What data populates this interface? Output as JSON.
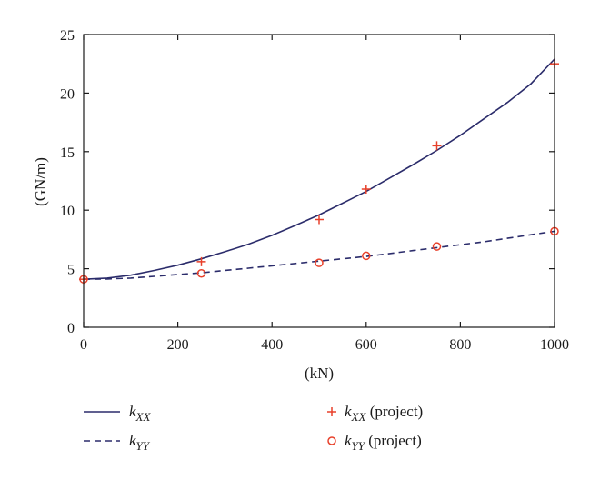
{
  "colors": {
    "line": "#2b2c6b",
    "marker": "#e8402a",
    "axis": "#1a1a1a"
  },
  "chart_data": {
    "type": "line",
    "title": "",
    "xlabel": "(kN)",
    "ylabel": "(GN/m)",
    "xlim": [
      0,
      1000
    ],
    "ylim": [
      0,
      25
    ],
    "xticks": [
      0,
      200,
      400,
      600,
      800,
      1000
    ],
    "yticks": [
      0,
      5,
      10,
      15,
      20,
      25
    ],
    "grid": false,
    "legend_position": "bottom",
    "series": [
      {
        "label_main": "k",
        "label_sub": "XX",
        "label_suffix": "",
        "style": "solid",
        "x": [
          0,
          50,
          100,
          150,
          200,
          250,
          300,
          350,
          400,
          450,
          500,
          550,
          600,
          650,
          700,
          750,
          800,
          850,
          900,
          950,
          1000
        ],
        "y": [
          4.1,
          4.2,
          4.45,
          4.85,
          5.3,
          5.85,
          6.45,
          7.1,
          7.85,
          8.7,
          9.6,
          10.6,
          11.6,
          12.75,
          13.9,
          15.1,
          16.4,
          17.8,
          19.2,
          20.8,
          22.9
        ]
      },
      {
        "label_main": "k",
        "label_sub": "YY",
        "label_suffix": "",
        "style": "dashed",
        "x": [
          0,
          50,
          100,
          150,
          200,
          250,
          300,
          350,
          400,
          450,
          500,
          550,
          600,
          650,
          700,
          750,
          800,
          850,
          900,
          950,
          1000
        ],
        "y": [
          4.1,
          4.12,
          4.2,
          4.35,
          4.5,
          4.65,
          4.85,
          5.05,
          5.25,
          5.45,
          5.65,
          5.85,
          6.05,
          6.3,
          6.55,
          6.8,
          7.05,
          7.3,
          7.6,
          7.9,
          8.2
        ]
      },
      {
        "label_main": "k",
        "label_sub": "XX",
        "label_suffix": " (project)",
        "style": "plus",
        "x": [
          0,
          250,
          500,
          600,
          750,
          1000
        ],
        "y": [
          4.1,
          5.6,
          9.2,
          11.8,
          15.5,
          22.5
        ]
      },
      {
        "label_main": "k",
        "label_sub": "YY",
        "label_suffix": " (project)",
        "style": "circle",
        "x": [
          0,
          250,
          500,
          600,
          750,
          1000
        ],
        "y": [
          4.1,
          4.6,
          5.5,
          6.1,
          6.9,
          8.2
        ]
      }
    ]
  }
}
